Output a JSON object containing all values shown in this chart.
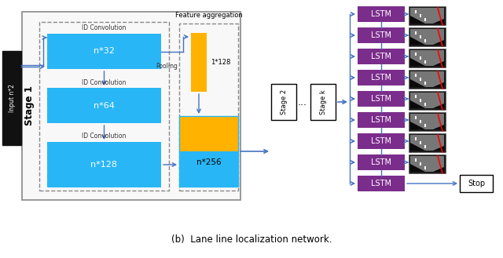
{
  "title": "(b)  Lane line localization network.",
  "title_fontsize": 8.5,
  "fig_bg": "#ffffff",
  "cyan_color": "#29B6F6",
  "purple_color": "#7B2D8B",
  "yellow_color": "#FFB300",
  "input_label": "Input n*2",
  "stage1_label": "Stage 1",
  "stage2_label": "Stage 2",
  "stagek_label": "Stage k",
  "lstm_label": "LSTM",
  "stop_label": "Stop",
  "feature_agg_label": "Feature aggregation",
  "pooling_label": "Pooling",
  "n32_label": "n*32",
  "n64_label": "n*64",
  "n128_label": "n*128",
  "n256_label": "n*256",
  "n128_small_label": "1*128",
  "id_conv_label": "ID Convolution",
  "num_lstm": 9,
  "arrow_color": "#4472C4",
  "border_color": "#888888"
}
